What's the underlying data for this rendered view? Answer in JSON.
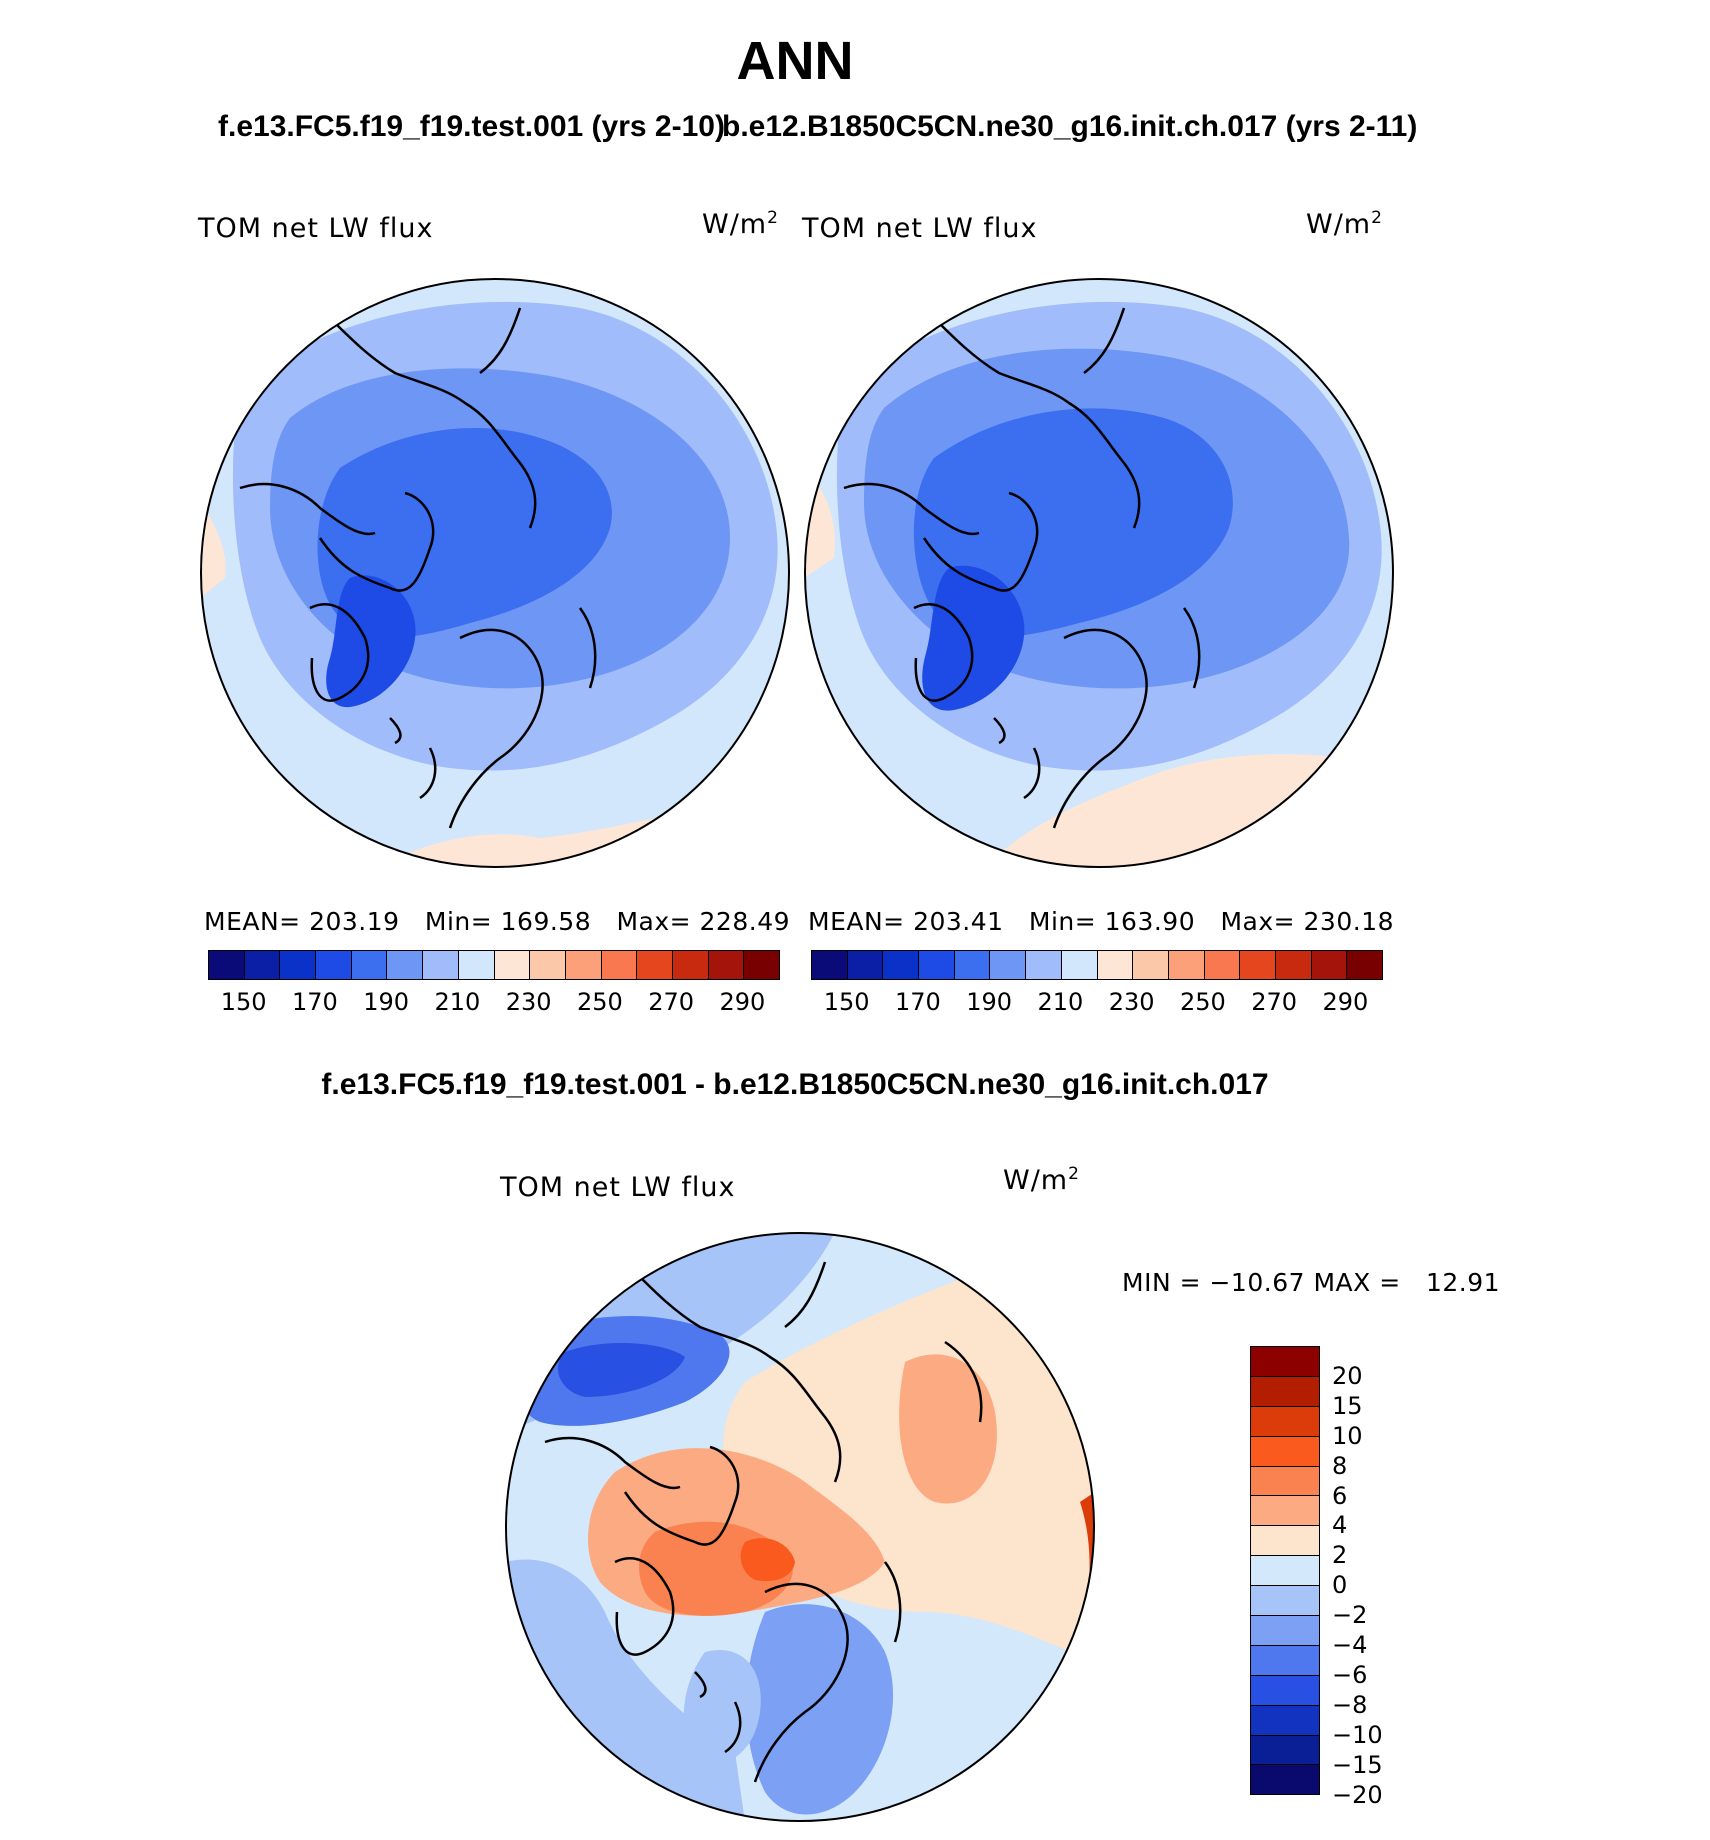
{
  "header": {
    "season": "ANN",
    "left_run": "f.e13.FC5.f19_f19.test.001 (yrs 2-10)",
    "right_run": "b.e12.B1850C5CN.ne30_g16.init.ch.017 (yrs 2-11)",
    "diff_title": "f.e13.FC5.f19_f19.test.001 - b.e12.B1850C5CN.ne30_g16.init.ch.017"
  },
  "panels": {
    "left": {
      "variable": "TOM net LW flux",
      "units": "W/m",
      "units_sup": "2",
      "stats": "MEAN= 203.19   Min= 169.58   Max= 228.49"
    },
    "right": {
      "variable": "TOM net LW flux",
      "units": "W/m",
      "units_sup": "2",
      "stats": "MEAN= 203.41   Min= 163.90   Max= 230.18"
    },
    "diff": {
      "variable": "TOM net LW flux",
      "units": "W/m",
      "units_sup": "2",
      "stats": "MIN = −10.67 MAX =   12.91"
    }
  },
  "colorbar_main": {
    "colors": [
      "#0a0a78",
      "#0a1fa6",
      "#0a32c8",
      "#1e4be6",
      "#3c6ef0",
      "#6e96f5",
      "#a0bcfa",
      "#d2e6fc",
      "#fde6d6",
      "#fcc8aa",
      "#fba078",
      "#f97850",
      "#e6461e",
      "#c82a10",
      "#a5140a",
      "#780000"
    ],
    "labels": [
      "150",
      "170",
      "190",
      "210",
      "230",
      "250",
      "270",
      "290"
    ]
  },
  "colorbar_diff": {
    "colors": [
      "#8c0000",
      "#b41e00",
      "#dc3c0a",
      "#fa5a1e",
      "#fa8250",
      "#fbaa82",
      "#fde4cc",
      "#d4e8fc",
      "#a6c4f8",
      "#7ca0f4",
      "#5078ee",
      "#2850e2",
      "#1232c0",
      "#0a1e96",
      "#0a0a6e"
    ],
    "labels": [
      "20",
      "15",
      "10",
      "8",
      "6",
      "4",
      "2",
      "0",
      "−2",
      "−4",
      "−6",
      "−8",
      "−10",
      "−15",
      "−20"
    ]
  },
  "map_palette": {
    "pale_blue": "#d2e6fc",
    "light_blue": "#a0bcfa",
    "mid_blue": "#6e96f5",
    "blue": "#3c6ef0",
    "dark_blue": "#1e4be6",
    "peach": "#fde6d6"
  },
  "diff_palette": {
    "pale_blue": "#d4e8fc",
    "light_blue": "#a6c4f8",
    "mid_blue": "#7ca0f4",
    "blue": "#5078ee",
    "dark_blue": "#2850e2",
    "peach": "#fde4cc",
    "salmon": "#fbaa82",
    "orange": "#fa8250",
    "red_orange": "#fa5a1e",
    "red": "#dc3c0a"
  }
}
